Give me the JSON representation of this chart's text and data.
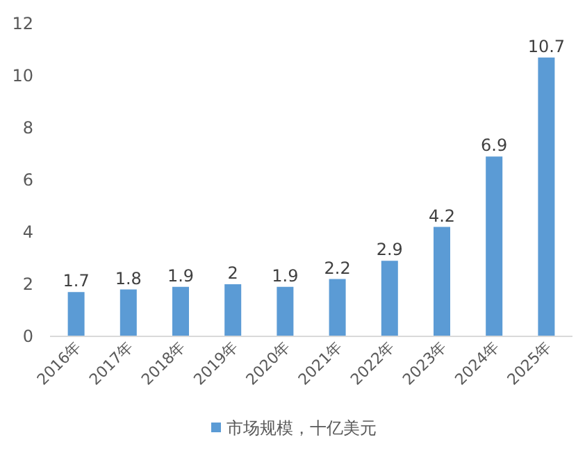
{
  "chart_data": {
    "type": "bar",
    "categories": [
      "2016年",
      "2017年",
      "2018年",
      "2019年",
      "2020年",
      "2021年",
      "2022年",
      "2023年",
      "2024年",
      "2025年"
    ],
    "series": [
      {
        "name": "市场规模，十亿美元",
        "color": "#5b9bd5",
        "values": [
          1.7,
          1.8,
          1.9,
          2,
          1.9,
          2.2,
          2.9,
          4.2,
          6.9,
          10.7
        ]
      }
    ],
    "ylim": [
      0,
      12
    ],
    "yticks": [
      0,
      2,
      4,
      6,
      8,
      10,
      12
    ],
    "data_labels": true,
    "legend": "bottom",
    "grid": false
  }
}
